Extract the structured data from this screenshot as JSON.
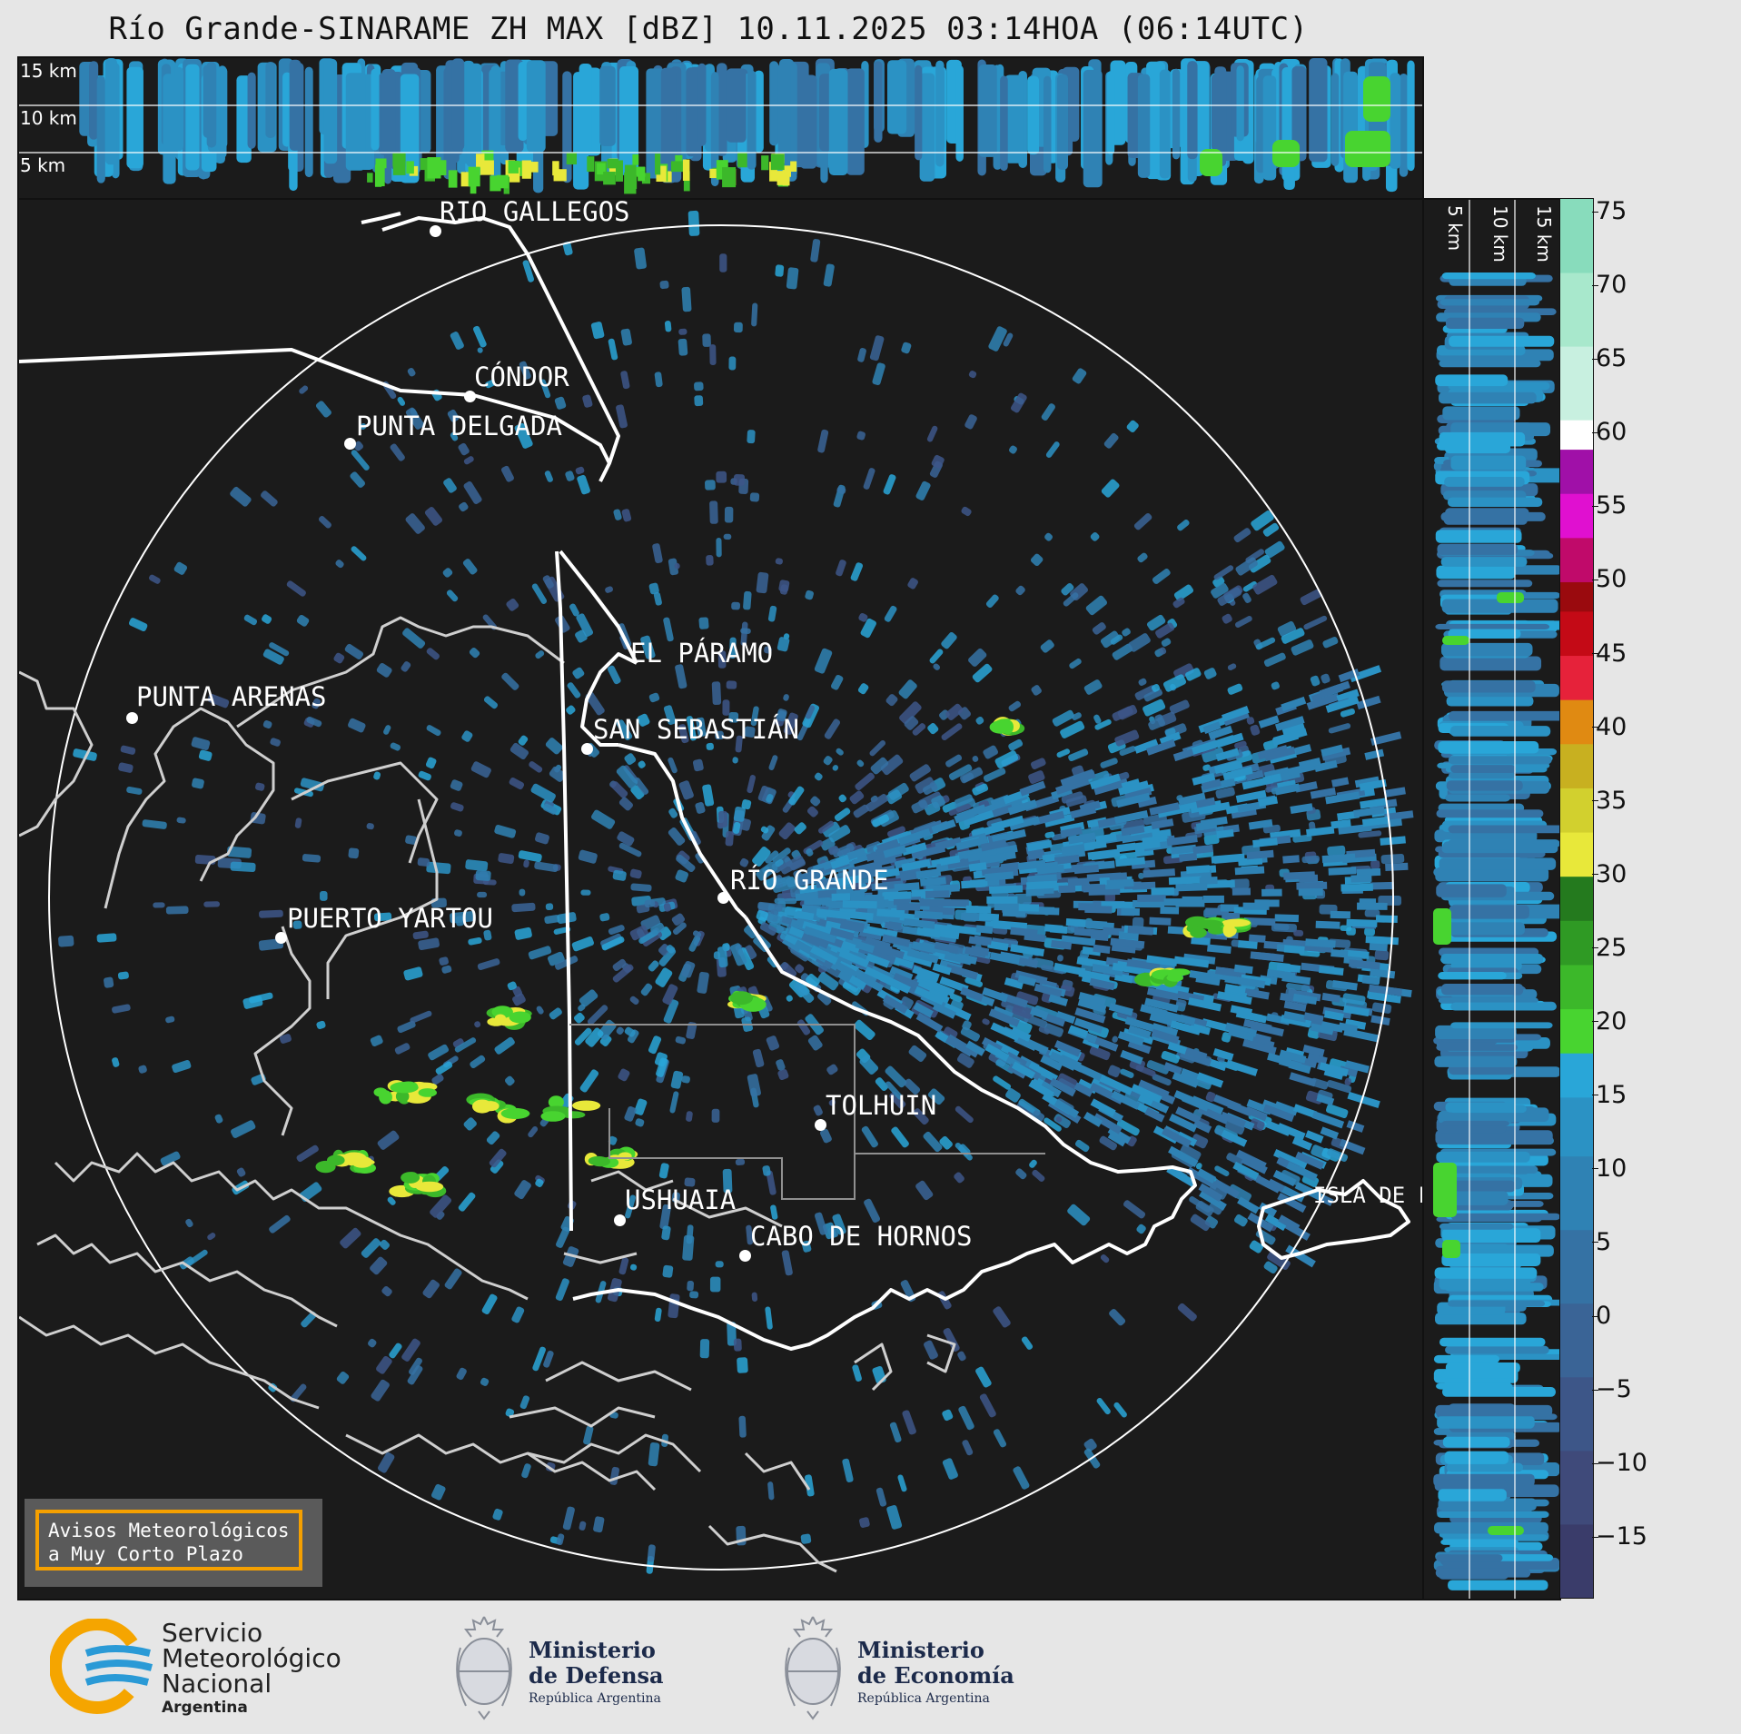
{
  "title": "Río Grande-SINARAME ZH MAX [dBZ] 10.11.2025 03:14HOA (06:14UTC)",
  "top_panel": {
    "height_labels": [
      "15 km",
      "10 km",
      "5 km"
    ]
  },
  "side_panel": {
    "height_labels": [
      "5 km",
      "10 km",
      "15 km"
    ]
  },
  "colorbar": {
    "unit": "dBZ",
    "ticks": [
      "75",
      "70",
      "65",
      "60",
      "55",
      "50",
      "45",
      "40",
      "35",
      "30",
      "25",
      "20",
      "15",
      "10",
      "5",
      "0",
      "−5",
      "−10",
      "−15"
    ],
    "range": [
      -19,
      76
    ],
    "bands": [
      {
        "from": -19,
        "to": -14,
        "color": "#3a3c6a"
      },
      {
        "from": -14,
        "to": -9,
        "color": "#3f4a7a"
      },
      {
        "from": -9,
        "to": -4,
        "color": "#3d5688"
      },
      {
        "from": -4,
        "to": 1,
        "color": "#3a6496"
      },
      {
        "from": 1,
        "to": 6,
        "color": "#3572a4"
      },
      {
        "from": 6,
        "to": 11,
        "color": "#2f82b4"
      },
      {
        "from": 11,
        "to": 15,
        "color": "#2b92c4"
      },
      {
        "from": 15,
        "to": 18,
        "color": "#29a6d8"
      },
      {
        "from": 18,
        "to": 21,
        "color": "#48d430"
      },
      {
        "from": 21,
        "to": 24,
        "color": "#3cb82a"
      },
      {
        "from": 24,
        "to": 27,
        "color": "#2f9a24"
      },
      {
        "from": 27,
        "to": 30,
        "color": "#247a1e"
      },
      {
        "from": 30,
        "to": 33,
        "color": "#e8e83a"
      },
      {
        "from": 33,
        "to": 36,
        "color": "#d2d02e"
      },
      {
        "from": 36,
        "to": 39,
        "color": "#c8b020"
      },
      {
        "from": 39,
        "to": 42,
        "color": "#e08a12"
      },
      {
        "from": 42,
        "to": 45,
        "color": "#e6223a"
      },
      {
        "from": 45,
        "to": 48,
        "color": "#c40a16"
      },
      {
        "from": 48,
        "to": 50,
        "color": "#9a0a0e"
      },
      {
        "from": 50,
        "to": 53,
        "color": "#c00a6a"
      },
      {
        "from": 53,
        "to": 56,
        "color": "#e010d0"
      },
      {
        "from": 56,
        "to": 59,
        "color": "#a010a8"
      },
      {
        "from": 59,
        "to": 61,
        "color": "#ffffff"
      },
      {
        "from": 61,
        "to": 66,
        "color": "#c8f0e0"
      },
      {
        "from": 66,
        "to": 71,
        "color": "#a8e8cc"
      },
      {
        "from": 71,
        "to": 76,
        "color": "#88dcbc"
      }
    ]
  },
  "cities": [
    {
      "name": "RÍO GALLEGOS"
    },
    {
      "name": "CÓNDOR"
    },
    {
      "name": "PUNTA DELGADA"
    },
    {
      "name": "EL PÁRAMO"
    },
    {
      "name": "PUNTA ARENAS"
    },
    {
      "name": "SAN SEBASTIÁN"
    },
    {
      "name": "RÍO GRANDE"
    },
    {
      "name": "PUERTO YARTOU"
    },
    {
      "name": "TOLHUIN"
    },
    {
      "name": "USHUAIA"
    },
    {
      "name": "CABO DE HORNOS"
    },
    {
      "name": "ISLA DE LOS ESTADOS"
    }
  ],
  "notice": {
    "line1": "Avisos Meteorológicos",
    "line2": "a Muy Corto Plazo"
  },
  "footer": {
    "smn": [
      "Servicio",
      "Meteorológico",
      "Nacional",
      "Argentina"
    ],
    "defensa": {
      "line1": "Ministerio",
      "line2": "de Defensa",
      "line3": "República Argentina"
    },
    "economia": {
      "line1": "Ministerio",
      "line2": "de Economía",
      "line3": "República Argentina"
    }
  },
  "colors": {
    "background": "#1b1b1b",
    "echo_weak": "#2f82b4",
    "echo_moderate": "#48d430",
    "coastline": "#d0d0d0",
    "border": "#ffffff",
    "notice_border": "#f5a000"
  }
}
